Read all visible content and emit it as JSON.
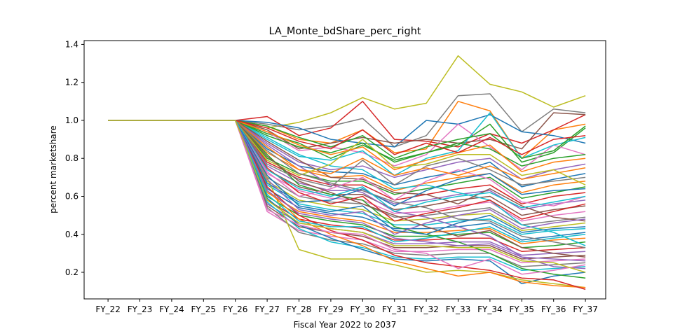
{
  "chart_data": {
    "type": "line",
    "title": "LA_Monte_bdShare_perc_right",
    "xlabel": "Fiscal Year 2022 to 2037",
    "ylabel": "percent marketshare",
    "categories": [
      "FY_22",
      "FY_23",
      "FY_24",
      "FY_25",
      "FY_26",
      "FY_27",
      "FY_28",
      "FY_29",
      "FY_30",
      "FY_31",
      "FY_32",
      "FY_33",
      "FY_34",
      "FY_35",
      "FY_36",
      "FY_37"
    ],
    "ylim": [
      0.06,
      1.42
    ],
    "yticks": [
      0.2,
      0.4,
      0.6,
      0.8,
      1.0,
      1.2,
      1.4
    ],
    "ytick_labels": [
      "0.2",
      "0.4",
      "0.6",
      "0.8",
      "1.0",
      "1.2",
      "1.4"
    ],
    "grid": false,
    "note_series": "Hundreds of Monte Carlo simulation lines; individual series are not labeled. Representative extracted series below.",
    "series": [
      {
        "color": "#bcbd22",
        "values": [
          1.0,
          1.0,
          1.0,
          1.0,
          1.0,
          0.96,
          0.99,
          1.04,
          1.12,
          1.06,
          1.09,
          1.34,
          1.19,
          1.15,
          1.07,
          1.13
        ]
      },
      {
        "color": "#7f7f7f",
        "values": [
          1.0,
          1.0,
          1.0,
          1.0,
          1.0,
          0.98,
          0.95,
          0.97,
          1.01,
          0.86,
          0.92,
          1.13,
          1.14,
          0.94,
          1.06,
          1.04
        ]
      },
      {
        "color": "#ff7f0e",
        "values": [
          1.0,
          1.0,
          1.0,
          1.0,
          1.0,
          0.97,
          0.9,
          0.88,
          0.95,
          0.83,
          0.85,
          1.1,
          1.05,
          0.8,
          0.95,
          0.98
        ]
      },
      {
        "color": "#d62728",
        "values": [
          1.0,
          1.0,
          1.0,
          1.0,
          1.0,
          1.02,
          0.92,
          0.96,
          1.1,
          0.9,
          0.89,
          0.86,
          0.93,
          0.88,
          0.95,
          1.03
        ]
      },
      {
        "color": "#1f77b4",
        "values": [
          1.0,
          1.0,
          1.0,
          1.0,
          1.0,
          0.99,
          0.96,
          0.9,
          0.88,
          0.86,
          1.0,
          0.98,
          1.03,
          0.94,
          0.92,
          0.88
        ]
      },
      {
        "color": "#8c564b",
        "values": [
          1.0,
          1.0,
          1.0,
          1.0,
          1.0,
          0.95,
          0.85,
          0.88,
          0.91,
          0.88,
          0.9,
          0.88,
          0.9,
          0.85,
          1.04,
          1.03
        ]
      },
      {
        "color": "#2ca02c",
        "values": [
          1.0,
          1.0,
          1.0,
          1.0,
          1.0,
          0.93,
          0.88,
          0.8,
          0.87,
          0.79,
          0.83,
          0.87,
          0.98,
          0.78,
          0.83,
          0.96
        ]
      },
      {
        "color": "#e377c2",
        "values": [
          1.0,
          1.0,
          1.0,
          1.0,
          1.0,
          0.94,
          0.84,
          0.86,
          0.83,
          0.76,
          0.82,
          0.98,
          0.86,
          0.74,
          0.87,
          0.82
        ]
      },
      {
        "color": "#17becf",
        "values": [
          1.0,
          1.0,
          1.0,
          1.0,
          1.0,
          0.9,
          0.81,
          0.79,
          0.84,
          0.71,
          0.8,
          0.84,
          1.04,
          0.8,
          0.87,
          0.91
        ]
      },
      {
        "color": "#9467bd",
        "values": [
          1.0,
          1.0,
          1.0,
          1.0,
          1.0,
          0.88,
          0.78,
          0.74,
          0.76,
          0.7,
          0.74,
          0.78,
          0.8,
          0.69,
          0.74,
          0.77
        ]
      },
      {
        "color": "#1f77b4",
        "values": [
          1.0,
          1.0,
          1.0,
          1.0,
          1.0,
          0.85,
          0.76,
          0.73,
          0.72,
          0.66,
          0.7,
          0.73,
          0.78,
          0.65,
          0.69,
          0.72
        ]
      },
      {
        "color": "#ff7f0e",
        "values": [
          1.0,
          1.0,
          1.0,
          1.0,
          1.0,
          0.83,
          0.74,
          0.7,
          0.71,
          0.63,
          0.67,
          0.7,
          0.72,
          0.62,
          0.66,
          0.68
        ]
      },
      {
        "color": "#2ca02c",
        "values": [
          1.0,
          1.0,
          1.0,
          1.0,
          1.0,
          0.8,
          0.72,
          0.68,
          0.68,
          0.61,
          0.64,
          0.67,
          0.7,
          0.59,
          0.62,
          0.65
        ]
      },
      {
        "color": "#d62728",
        "values": [
          1.0,
          1.0,
          1.0,
          1.0,
          1.0,
          0.78,
          0.7,
          0.66,
          0.66,
          0.58,
          0.61,
          0.64,
          0.66,
          0.56,
          0.6,
          0.62
        ]
      },
      {
        "color": "#9467bd",
        "values": [
          1.0,
          1.0,
          1.0,
          1.0,
          1.0,
          0.76,
          0.67,
          0.63,
          0.63,
          0.56,
          0.58,
          0.61,
          0.63,
          0.53,
          0.56,
          0.58
        ]
      },
      {
        "color": "#8c564b",
        "values": [
          1.0,
          1.0,
          1.0,
          1.0,
          1.0,
          0.74,
          0.65,
          0.61,
          0.61,
          0.53,
          0.55,
          0.58,
          0.6,
          0.5,
          0.53,
          0.55
        ]
      },
      {
        "color": "#e377c2",
        "values": [
          1.0,
          1.0,
          1.0,
          1.0,
          1.0,
          0.72,
          0.63,
          0.59,
          0.58,
          0.51,
          0.52,
          0.55,
          0.57,
          0.47,
          0.5,
          0.52
        ]
      },
      {
        "color": "#7f7f7f",
        "values": [
          1.0,
          1.0,
          1.0,
          1.0,
          1.0,
          0.7,
          0.6,
          0.57,
          0.56,
          0.49,
          0.5,
          0.52,
          0.54,
          0.45,
          0.47,
          0.49
        ]
      },
      {
        "color": "#bcbd22",
        "values": [
          1.0,
          1.0,
          1.0,
          1.0,
          1.0,
          0.68,
          0.58,
          0.55,
          0.53,
          0.47,
          0.48,
          0.5,
          0.51,
          0.42,
          0.44,
          0.46
        ]
      },
      {
        "color": "#17becf",
        "values": [
          1.0,
          1.0,
          1.0,
          1.0,
          1.0,
          0.66,
          0.56,
          0.53,
          0.51,
          0.45,
          0.45,
          0.47,
          0.48,
          0.4,
          0.42,
          0.43
        ]
      },
      {
        "color": "#1f77b4",
        "values": [
          1.0,
          1.0,
          1.0,
          1.0,
          1.0,
          0.64,
          0.54,
          0.51,
          0.49,
          0.43,
          0.43,
          0.44,
          0.46,
          0.37,
          0.39,
          0.41
        ]
      },
      {
        "color": "#ff7f0e",
        "values": [
          1.0,
          1.0,
          1.0,
          1.0,
          1.0,
          0.62,
          0.52,
          0.49,
          0.47,
          0.41,
          0.41,
          0.42,
          0.43,
          0.35,
          0.37,
          0.38
        ]
      },
      {
        "color": "#2ca02c",
        "values": [
          1.0,
          1.0,
          1.0,
          1.0,
          1.0,
          0.6,
          0.5,
          0.47,
          0.45,
          0.39,
          0.39,
          0.4,
          0.41,
          0.33,
          0.34,
          0.36
        ]
      },
      {
        "color": "#d62728",
        "values": [
          1.0,
          1.0,
          1.0,
          1.0,
          1.0,
          0.58,
          0.48,
          0.45,
          0.43,
          0.37,
          0.37,
          0.38,
          0.38,
          0.31,
          0.32,
          0.33
        ]
      },
      {
        "color": "#9467bd",
        "values": [
          1.0,
          1.0,
          1.0,
          1.0,
          1.0,
          0.56,
          0.46,
          0.43,
          0.41,
          0.35,
          0.35,
          0.36,
          0.36,
          0.29,
          0.3,
          0.31
        ]
      },
      {
        "color": "#8c564b",
        "values": [
          1.0,
          1.0,
          1.0,
          1.0,
          1.0,
          0.55,
          0.44,
          0.41,
          0.39,
          0.33,
          0.33,
          0.34,
          0.34,
          0.27,
          0.28,
          0.29
        ]
      },
      {
        "color": "#e377c2",
        "values": [
          1.0,
          1.0,
          1.0,
          1.0,
          1.0,
          0.52,
          0.42,
          0.39,
          0.37,
          0.31,
          0.31,
          0.32,
          0.32,
          0.25,
          0.26,
          0.27
        ]
      },
      {
        "color": "#7f7f7f",
        "values": [
          1.0,
          1.0,
          1.0,
          1.0,
          1.0,
          0.54,
          0.41,
          0.37,
          0.35,
          0.3,
          0.29,
          0.3,
          0.3,
          0.23,
          0.24,
          0.25
        ]
      },
      {
        "color": "#17becf",
        "values": [
          1.0,
          1.0,
          1.0,
          1.0,
          1.0,
          0.57,
          0.43,
          0.36,
          0.33,
          0.28,
          0.27,
          0.28,
          0.28,
          0.21,
          0.22,
          0.23
        ]
      },
      {
        "color": "#1f77b4",
        "values": [
          1.0,
          1.0,
          1.0,
          1.0,
          1.0,
          0.59,
          0.45,
          0.38,
          0.32,
          0.27,
          0.26,
          0.27,
          0.26,
          0.14,
          0.18,
          0.2
        ]
      },
      {
        "color": "#bcbd22",
        "values": [
          1.0,
          1.0,
          1.0,
          1.0,
          1.0,
          0.7,
          0.32,
          0.27,
          0.27,
          0.24,
          0.2,
          0.21,
          0.2,
          0.16,
          0.14,
          0.12
        ]
      },
      {
        "color": "#ff7f0e",
        "values": [
          1.0,
          1.0,
          1.0,
          1.0,
          1.0,
          0.63,
          0.48,
          0.4,
          0.34,
          0.26,
          0.22,
          0.18,
          0.2,
          0.15,
          0.13,
          0.12
        ]
      },
      {
        "color": "#d62728",
        "values": [
          1.0,
          1.0,
          1.0,
          1.0,
          1.0,
          0.65,
          0.5,
          0.42,
          0.37,
          0.29,
          0.25,
          0.23,
          0.21,
          0.17,
          0.16,
          0.11
        ]
      },
      {
        "color": "#2ca02c",
        "values": [
          1.0,
          1.0,
          1.0,
          1.0,
          1.0,
          0.82,
          0.66,
          0.61,
          0.58,
          0.44,
          0.4,
          0.36,
          0.3,
          0.22,
          0.19,
          0.17
        ]
      },
      {
        "color": "#9467bd",
        "values": [
          1.0,
          1.0,
          1.0,
          1.0,
          1.0,
          0.87,
          0.76,
          0.66,
          0.62,
          0.52,
          0.49,
          0.44,
          0.39,
          0.28,
          0.23,
          0.22
        ]
      },
      {
        "color": "#17becf",
        "values": [
          1.0,
          1.0,
          1.0,
          1.0,
          1.0,
          0.91,
          0.82,
          0.76,
          0.74,
          0.64,
          0.66,
          0.62,
          0.58,
          0.45,
          0.41,
          0.34
        ]
      },
      {
        "color": "#8c564b",
        "values": [
          1.0,
          1.0,
          1.0,
          1.0,
          1.0,
          0.89,
          0.79,
          0.7,
          0.69,
          0.62,
          0.61,
          0.56,
          0.64,
          0.55,
          0.49,
          0.47
        ]
      },
      {
        "color": "#e377c2",
        "values": [
          1.0,
          1.0,
          1.0,
          1.0,
          1.0,
          0.73,
          0.6,
          0.64,
          0.7,
          0.58,
          0.68,
          0.74,
          0.69,
          0.57,
          0.55,
          0.6
        ]
      },
      {
        "color": "#7f7f7f",
        "values": [
          1.0,
          1.0,
          1.0,
          1.0,
          1.0,
          0.77,
          0.69,
          0.65,
          0.79,
          0.66,
          0.76,
          0.8,
          0.74,
          0.66,
          0.68,
          0.7
        ]
      },
      {
        "color": "#1f77b4",
        "values": [
          1.0,
          1.0,
          1.0,
          1.0,
          1.0,
          0.67,
          0.57,
          0.58,
          0.64,
          0.55,
          0.63,
          0.69,
          0.72,
          0.61,
          0.63,
          0.64
        ]
      },
      {
        "color": "#ff7f0e",
        "values": [
          1.0,
          1.0,
          1.0,
          1.0,
          1.0,
          0.86,
          0.74,
          0.72,
          0.8,
          0.71,
          0.75,
          0.71,
          0.76,
          0.69,
          0.72,
          0.75
        ]
      },
      {
        "color": "#2ca02c",
        "values": [
          1.0,
          1.0,
          1.0,
          1.0,
          1.0,
          0.92,
          0.86,
          0.83,
          0.88,
          0.78,
          0.83,
          0.88,
          0.85,
          0.76,
          0.8,
          0.82
        ]
      },
      {
        "color": "#d62728",
        "values": [
          1.0,
          1.0,
          1.0,
          1.0,
          1.0,
          0.75,
          0.62,
          0.56,
          0.6,
          0.47,
          0.51,
          0.54,
          0.58,
          0.48,
          0.52,
          0.56
        ]
      },
      {
        "color": "#bcbd22",
        "values": [
          1.0,
          1.0,
          1.0,
          1.0,
          1.0,
          0.79,
          0.71,
          0.77,
          0.9,
          0.75,
          0.77,
          0.82,
          0.82,
          0.71,
          0.74,
          0.66
        ]
      },
      {
        "color": "#9467bd",
        "values": [
          1.0,
          1.0,
          1.0,
          1.0,
          1.0,
          0.69,
          0.53,
          0.5,
          0.52,
          0.4,
          0.46,
          0.5,
          0.53,
          0.43,
          0.46,
          0.48
        ]
      },
      {
        "color": "#17becf",
        "values": [
          1.0,
          1.0,
          1.0,
          1.0,
          1.0,
          0.61,
          0.47,
          0.44,
          0.44,
          0.36,
          0.38,
          0.41,
          0.44,
          0.36,
          0.38,
          0.4
        ]
      },
      {
        "color": "#e377c2",
        "values": [
          1.0,
          1.0,
          1.0,
          1.0,
          1.0,
          0.53,
          0.45,
          0.41,
          0.4,
          0.32,
          0.3,
          0.22,
          0.27,
          0.19,
          0.21,
          0.24
        ]
      },
      {
        "color": "#8c564b",
        "values": [
          1.0,
          1.0,
          1.0,
          1.0,
          1.0,
          0.81,
          0.68,
          0.62,
          0.56,
          0.5,
          0.44,
          0.39,
          0.42,
          0.33,
          0.3,
          0.28
        ]
      },
      {
        "color": "#7f7f7f",
        "values": [
          1.0,
          1.0,
          1.0,
          1.0,
          1.0,
          0.84,
          0.72,
          0.67,
          0.63,
          0.57,
          0.54,
          0.48,
          0.47,
          0.39,
          0.36,
          0.33
        ]
      },
      {
        "color": "#1f77b4",
        "values": [
          1.0,
          1.0,
          1.0,
          1.0,
          1.0,
          0.71,
          0.55,
          0.52,
          0.55,
          0.42,
          0.4,
          0.46,
          0.5,
          0.41,
          0.43,
          0.44
        ]
      },
      {
        "color": "#2ca02c",
        "values": [
          1.0,
          1.0,
          1.0,
          1.0,
          1.0,
          0.97,
          0.91,
          0.86,
          0.92,
          0.8,
          0.86,
          0.9,
          0.93,
          0.8,
          0.84,
          0.97
        ]
      },
      {
        "color": "#ff7f0e",
        "values": [
          1.0,
          1.0,
          1.0,
          1.0,
          1.0,
          0.94,
          0.87,
          0.82,
          0.86,
          0.74,
          0.79,
          0.83,
          0.87,
          0.73,
          0.78,
          0.8
        ]
      },
      {
        "color": "#d62728",
        "values": [
          1.0,
          1.0,
          1.0,
          1.0,
          1.0,
          0.96,
          0.89,
          0.85,
          0.95,
          0.82,
          0.88,
          0.83,
          0.91,
          0.82,
          0.9,
          0.92
        ]
      },
      {
        "color": "#17becf",
        "values": [
          1.0,
          1.0,
          1.0,
          1.0,
          1.0,
          0.74,
          0.64,
          0.6,
          0.65,
          0.52,
          0.57,
          0.6,
          0.62,
          0.54,
          0.57,
          0.6
        ]
      },
      {
        "color": "#9467bd",
        "values": [
          1.0,
          1.0,
          1.0,
          1.0,
          1.0,
          0.63,
          0.51,
          0.48,
          0.46,
          0.38,
          0.36,
          0.34,
          0.35,
          0.28,
          0.27,
          0.26
        ]
      },
      {
        "color": "#bcbd22",
        "values": [
          1.0,
          1.0,
          1.0,
          1.0,
          1.0,
          0.58,
          0.46,
          0.43,
          0.41,
          0.34,
          0.34,
          0.33,
          0.33,
          0.26,
          0.25,
          0.2
        ]
      }
    ]
  }
}
